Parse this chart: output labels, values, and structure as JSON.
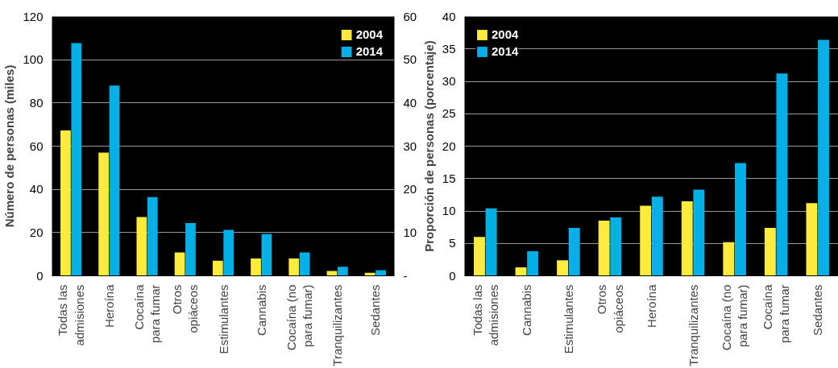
{
  "chart_data": [
    {
      "type": "bar",
      "ylabel": "Número de personas (miles)",
      "categories": [
        "Todas las\nadmisiones",
        "Heroína",
        "Cocaína\npara fumar",
        "Otros\nopiáceos",
        "Estimulantes",
        "Cannabis",
        "Cocaína (no\npara fumar)",
        "Tranquilizantes",
        "Sedantes"
      ],
      "ylim": [
        0,
        120
      ],
      "yticks": [
        0,
        20,
        40,
        60,
        80,
        100,
        120
      ],
      "y2lim": [
        0,
        60
      ],
      "y2ticks": [
        {
          "value": 0,
          "label": "-"
        },
        10,
        20,
        30,
        40,
        50,
        60
      ],
      "grid": "y",
      "legend": "top right",
      "series": [
        {
          "color": "#ffeb3b",
          "values": [
            67.3,
            null,
            null,
            null,
            null,
            null,
            null,
            null,
            null
          ]
        },
        {
          "color": "#00b0e6",
          "values": [
            107.7,
            null,
            null,
            null,
            null,
            null,
            null,
            null,
            null
          ]
        },
        {
          "name": "2004",
          "color": "#ffeb3b",
          "axis": "y2",
          "values": [
            null,
            28.5,
            13.6,
            5.4,
            3.5,
            4.0,
            4.0,
            1.1,
            0.7
          ]
        },
        {
          "name": "2014",
          "color": "#00b0e6",
          "axis": "y2",
          "values": [
            null,
            44.0,
            18.2,
            12.2,
            10.6,
            9.7,
            5.4,
            2.1,
            1.3
          ]
        }
      ]
    },
    {
      "type": "bar",
      "ylabel": "Proporción de personas (porcentaje)",
      "categories": [
        "Todas las\nadmisiones",
        "Cannabis",
        "Estimulantes",
        "Otros\nopiáceos",
        "Heroína",
        "Tranquilizantes",
        "Cocaína (no\npara fumar)",
        "Cocaína\npara fumar",
        "Sedantes"
      ],
      "ylim": [
        0,
        40
      ],
      "yticks": [
        0,
        5,
        10,
        15,
        20,
        25,
        30,
        35,
        40
      ],
      "grid": "y",
      "legend": "top left",
      "series": [
        {
          "name": "2004",
          "color": "#ffeb3b",
          "values": [
            6.0,
            1.3,
            2.4,
            8.5,
            10.8,
            11.5,
            5.2,
            7.4,
            11.2
          ]
        },
        {
          "name": "2014",
          "color": "#00b0e6",
          "values": [
            10.4,
            3.8,
            7.4,
            9.0,
            12.2,
            13.3,
            17.4,
            31.2,
            36.4
          ]
        }
      ]
    }
  ]
}
